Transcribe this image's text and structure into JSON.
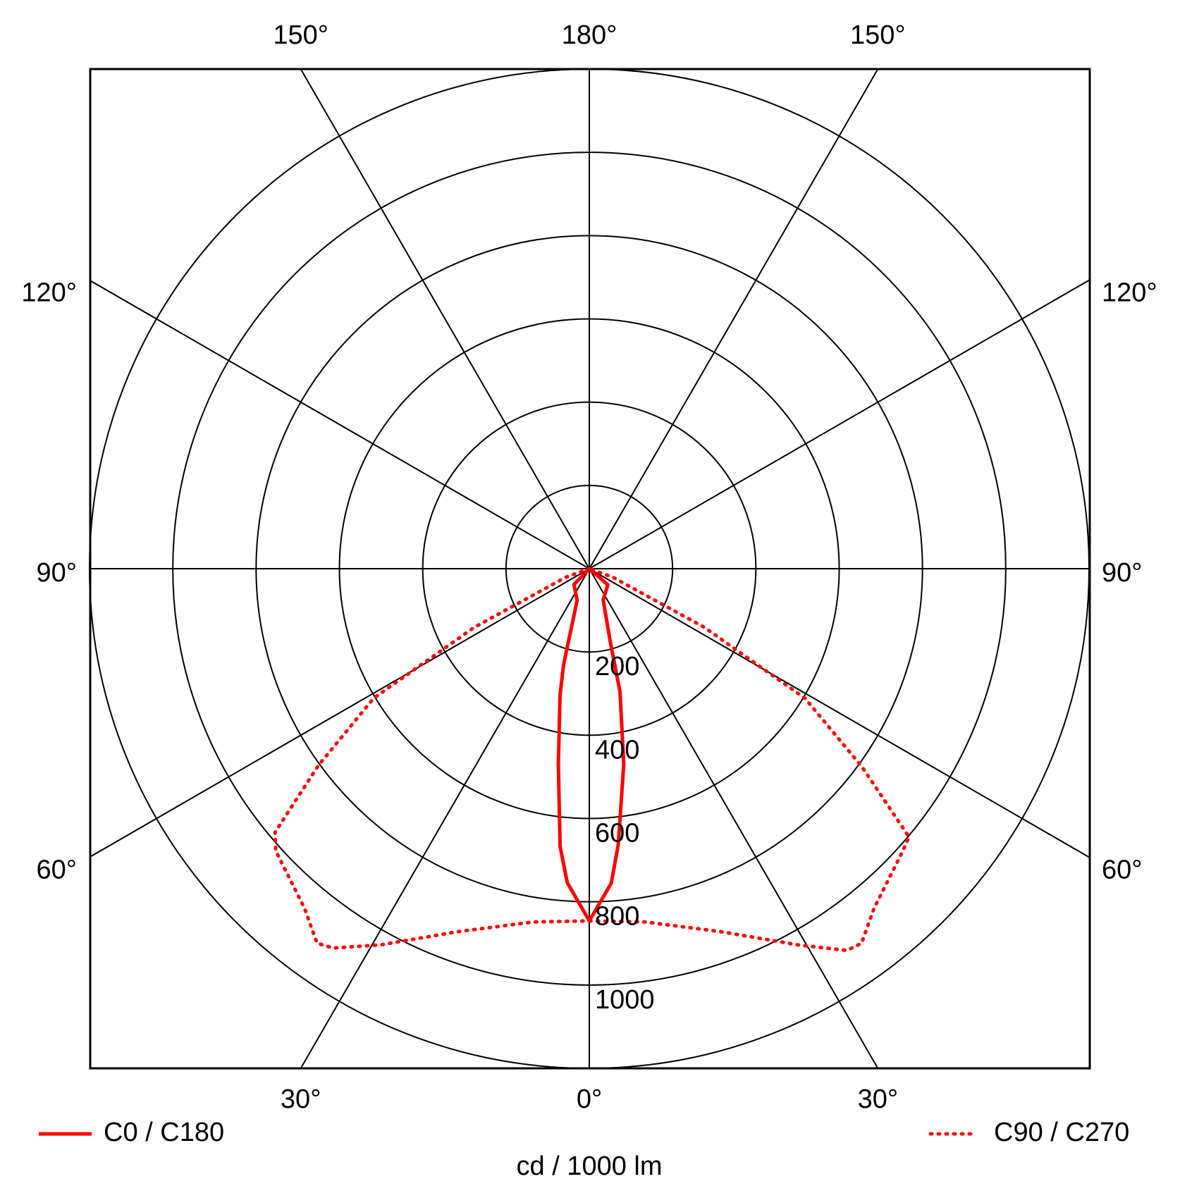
{
  "chart_data": {
    "type": "polar",
    "axis_label": "cd / 1000 lm",
    "rlim": [
      0,
      1200
    ],
    "rticks": [
      200,
      400,
      600,
      800,
      1000
    ],
    "angle_ticks": [
      {
        "value": -150,
        "label": "150°"
      },
      {
        "value": 180,
        "label": "180°"
      },
      {
        "value": 150,
        "label": "150°"
      },
      {
        "value": -120,
        "label": "120°"
      },
      {
        "value": 120,
        "label": "120°"
      },
      {
        "value": -90,
        "label": "90°"
      },
      {
        "value": 90,
        "label": "90°"
      },
      {
        "value": -60,
        "label": "60°"
      },
      {
        "value": 60,
        "label": "60°"
      },
      {
        "value": -30,
        "label": "30°"
      },
      {
        "value": 0,
        "label": "0°"
      },
      {
        "value": 30,
        "label": "30°"
      }
    ],
    "series": [
      {
        "name": "C0 / C180",
        "color": "#ff0000",
        "style": "solid",
        "x": [
          -90,
          -44,
          -21,
          -15,
          -13,
          -9,
          -6,
          -4,
          0,
          4,
          6,
          10,
          14,
          16,
          24,
          49,
          90
        ],
        "values": [
          0,
          53,
          81,
          239,
          312,
          475,
          671,
          756,
          846,
          757,
          666,
          477,
          305,
          183,
          82,
          59,
          0
        ]
      },
      {
        "name": "C90 / C270",
        "color": "#ff0000",
        "style": "dotted",
        "x": [
          -90,
          -70,
          -63,
          -60,
          -59,
          -54,
          -50,
          -48,
          -40,
          -36,
          -34,
          -29,
          -20,
          -9,
          0,
          9,
          20,
          29,
          34,
          36,
          40,
          48,
          50,
          54,
          59,
          60,
          63,
          70,
          90
        ],
        "values": [
          0,
          60,
          310,
          488,
          604,
          804,
          985,
          1013,
          1064,
          1112,
          1099,
          1033,
          928,
          859,
          846,
          859,
          928,
          1033,
          1106,
          1112,
          1064,
          1013,
          1002,
          809,
          604,
          488,
          310,
          60,
          0
        ]
      }
    ]
  }
}
